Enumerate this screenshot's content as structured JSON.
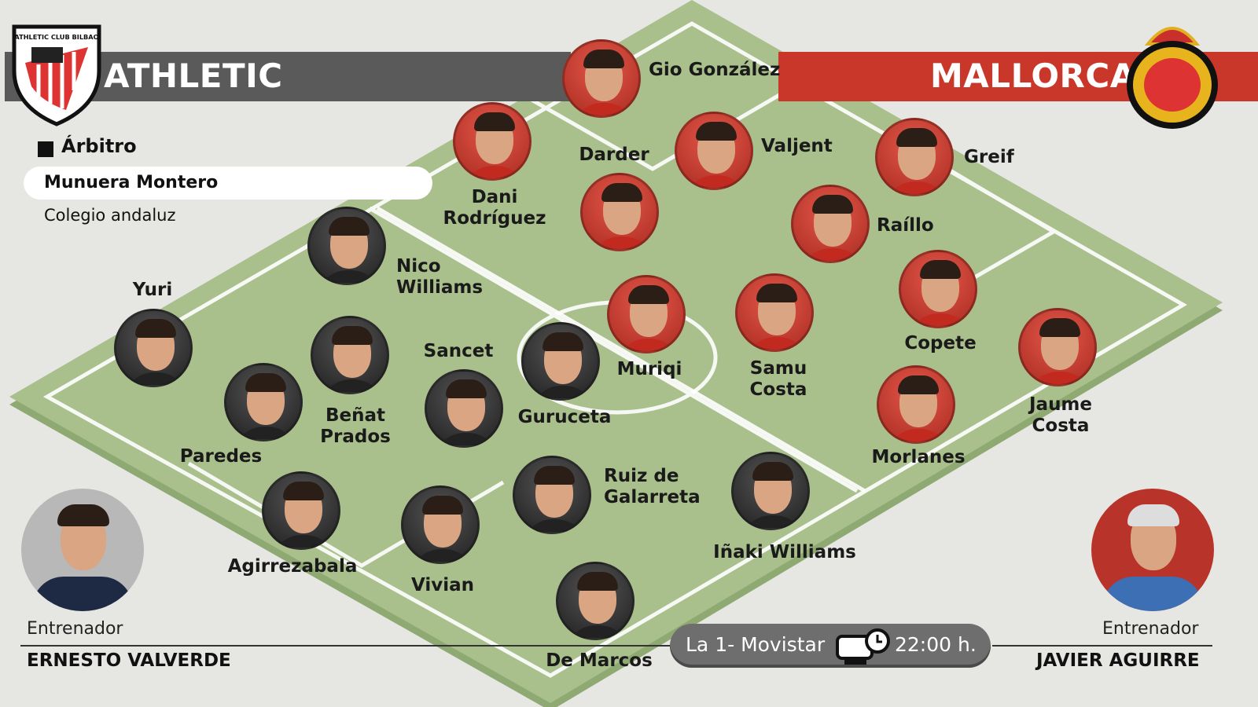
{
  "home": {
    "name": "ATHLETIC",
    "crest_text": "ATHLETIC CLUB BILBAO",
    "color": "#5a5a5a",
    "coach": {
      "role": "Entrenador",
      "name": "ERNESTO VALVERDE"
    },
    "players": [
      "Agirrezabala",
      "Vivian",
      "Paredes",
      "Yuri",
      "De Marcos",
      "Beñat\nPrados",
      "Sancet",
      "Ruiz de\nGalarreta",
      "Guruceta",
      "Nico\nWilliams",
      "Iñaki Williams"
    ]
  },
  "away": {
    "name": "MALLORCA",
    "color": "#c9372b",
    "coach": {
      "role": "Entrenador",
      "name": "JAVIER AGUIRRE"
    },
    "players": [
      "Gio González",
      "Dani\nRodríguez",
      "Darder",
      "Valjent",
      "Greif",
      "Raíllo",
      "Muriqi",
      "Samu\nCosta",
      "Copete",
      "Morlanes",
      "Jaume\nCosta"
    ]
  },
  "referee": {
    "heading": "Árbitro",
    "name": "Munuera Montero",
    "college": "Colegio andaluz"
  },
  "broadcast": {
    "channel": "La 1- Movistar",
    "time": "22:00 h.",
    "icon": "tv-clock-icon"
  },
  "colors": {
    "pitch": "#a9bf8c",
    "line": "#ffffff"
  }
}
